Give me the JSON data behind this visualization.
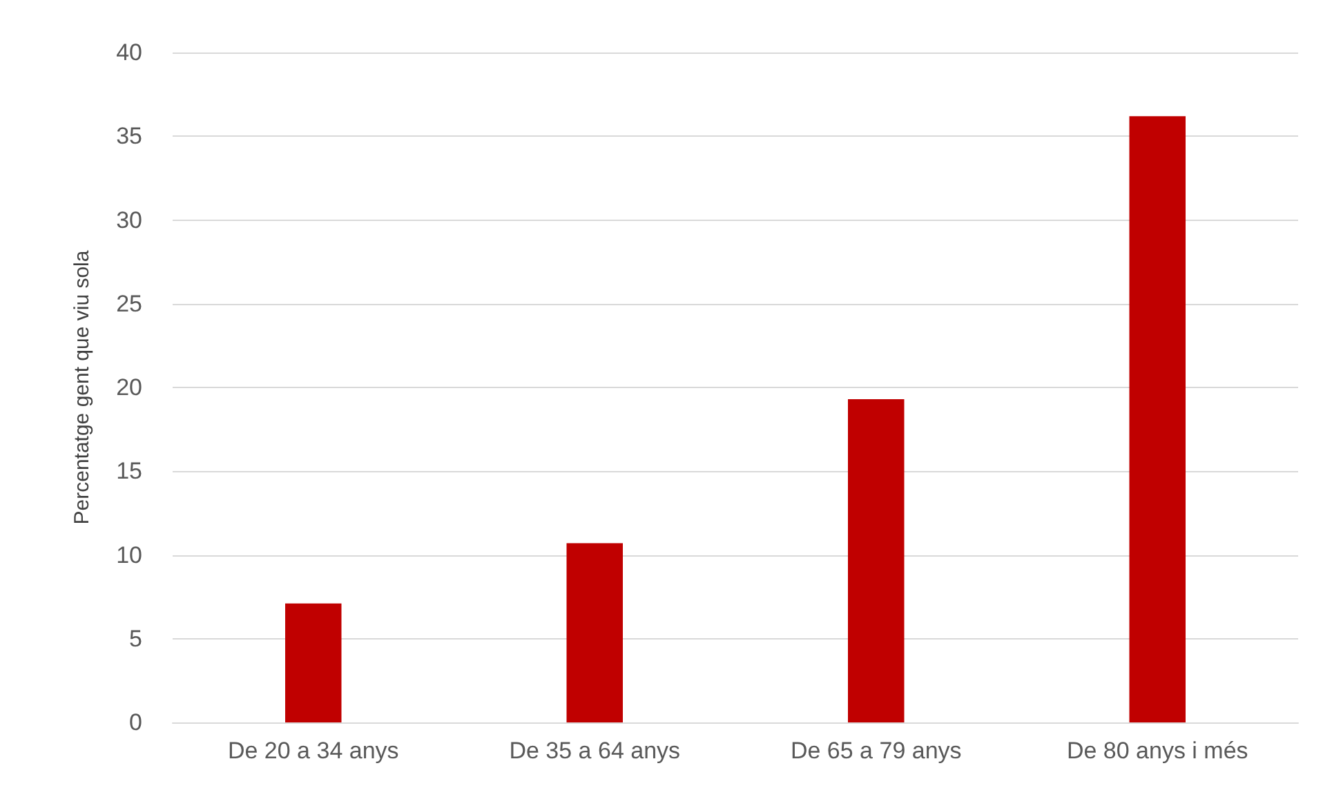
{
  "chart_data": {
    "type": "bar",
    "ylabel": "Percentatge gent que viu sola",
    "categories": [
      "De 20 a 34 anys",
      "De 35 a 64 anys",
      "De 65 a 79 anys",
      "De 80 anys i més"
    ],
    "values": [
      7.1,
      10.7,
      19.3,
      36.2
    ],
    "color": "#c00000",
    "ylim": [
      0,
      40
    ],
    "yticks": [
      0,
      5,
      10,
      15,
      20,
      25,
      30,
      35,
      40
    ],
    "grid": "y"
  }
}
